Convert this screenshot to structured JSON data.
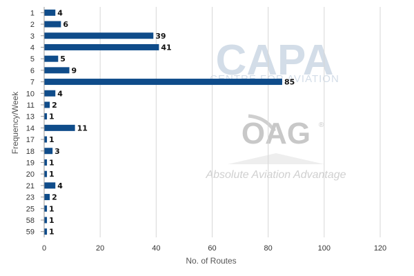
{
  "watermarks": {
    "capa_logo": "CAPA",
    "capa_subtitle": "CENTRE FOR AVIATION",
    "oag_logo": "OAG",
    "oag_registered": "®",
    "oag_tagline": "Absolute Aviation Advantage"
  },
  "colors": {
    "bar": "#0f4c8a",
    "grid": "#d6d6d6",
    "axis": "#999999"
  },
  "chart_data": {
    "type": "bar",
    "orientation": "horizontal",
    "title": "",
    "xlabel": "No. of Routes",
    "ylabel": "Frequency/Week",
    "xlim": [
      0,
      120
    ],
    "x_ticks": [
      0,
      20,
      40,
      60,
      80,
      100,
      120
    ],
    "grid": "vertical",
    "categories": [
      "1",
      "2",
      "3",
      "4",
      "5",
      "6",
      "7",
      "10",
      "11",
      "13",
      "14",
      "17",
      "18",
      "19",
      "20",
      "21",
      "23",
      "25",
      "58",
      "59"
    ],
    "values": [
      4,
      6,
      39,
      41,
      5,
      9,
      85,
      4,
      2,
      1,
      11,
      1,
      3,
      1,
      1,
      4,
      2,
      1,
      1,
      1
    ]
  }
}
